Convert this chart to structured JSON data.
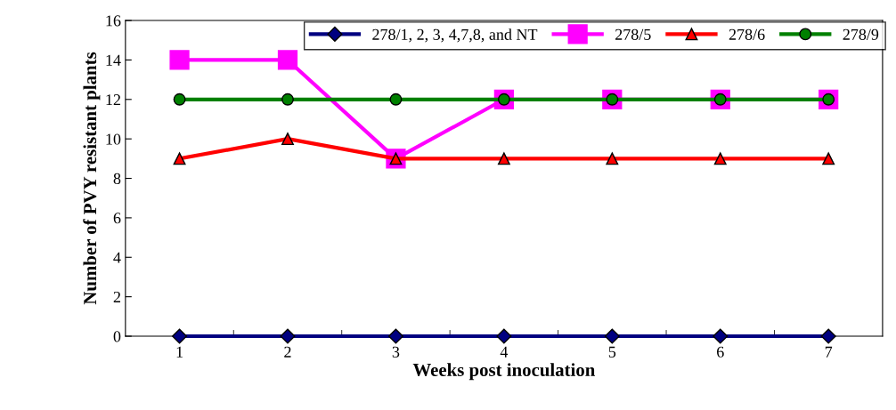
{
  "chart_data": {
    "type": "line",
    "xlabel": "Weeks post inoculation",
    "ylabel": "Number of PVY resistant plants",
    "categories": [
      "1",
      "2",
      "3",
      "4",
      "5",
      "6",
      "7"
    ],
    "series": [
      {
        "name": "278/1, 2, 3, 4,7,8, and NT",
        "color": "#000080",
        "marker": "diamond",
        "values": [
          0,
          0,
          0,
          0,
          0,
          0,
          0
        ]
      },
      {
        "name": "278/5",
        "color": "#ff00ff",
        "marker": "square",
        "values": [
          14,
          14,
          9,
          12,
          12,
          12,
          12
        ]
      },
      {
        "name": "278/6",
        "color": "#ff0000",
        "marker": "triangle",
        "values": [
          9,
          10,
          9,
          9,
          9,
          9,
          9
        ]
      },
      {
        "name": "278/9",
        "color": "#008000",
        "marker": "circle",
        "values": [
          12,
          12,
          12,
          12,
          12,
          12,
          12
        ]
      }
    ],
    "ylim": [
      0,
      16
    ],
    "yticks": [
      0,
      2,
      4,
      6,
      8,
      10,
      12,
      14,
      16
    ],
    "grid": false,
    "legend": "top",
    "line_style": "solid"
  }
}
